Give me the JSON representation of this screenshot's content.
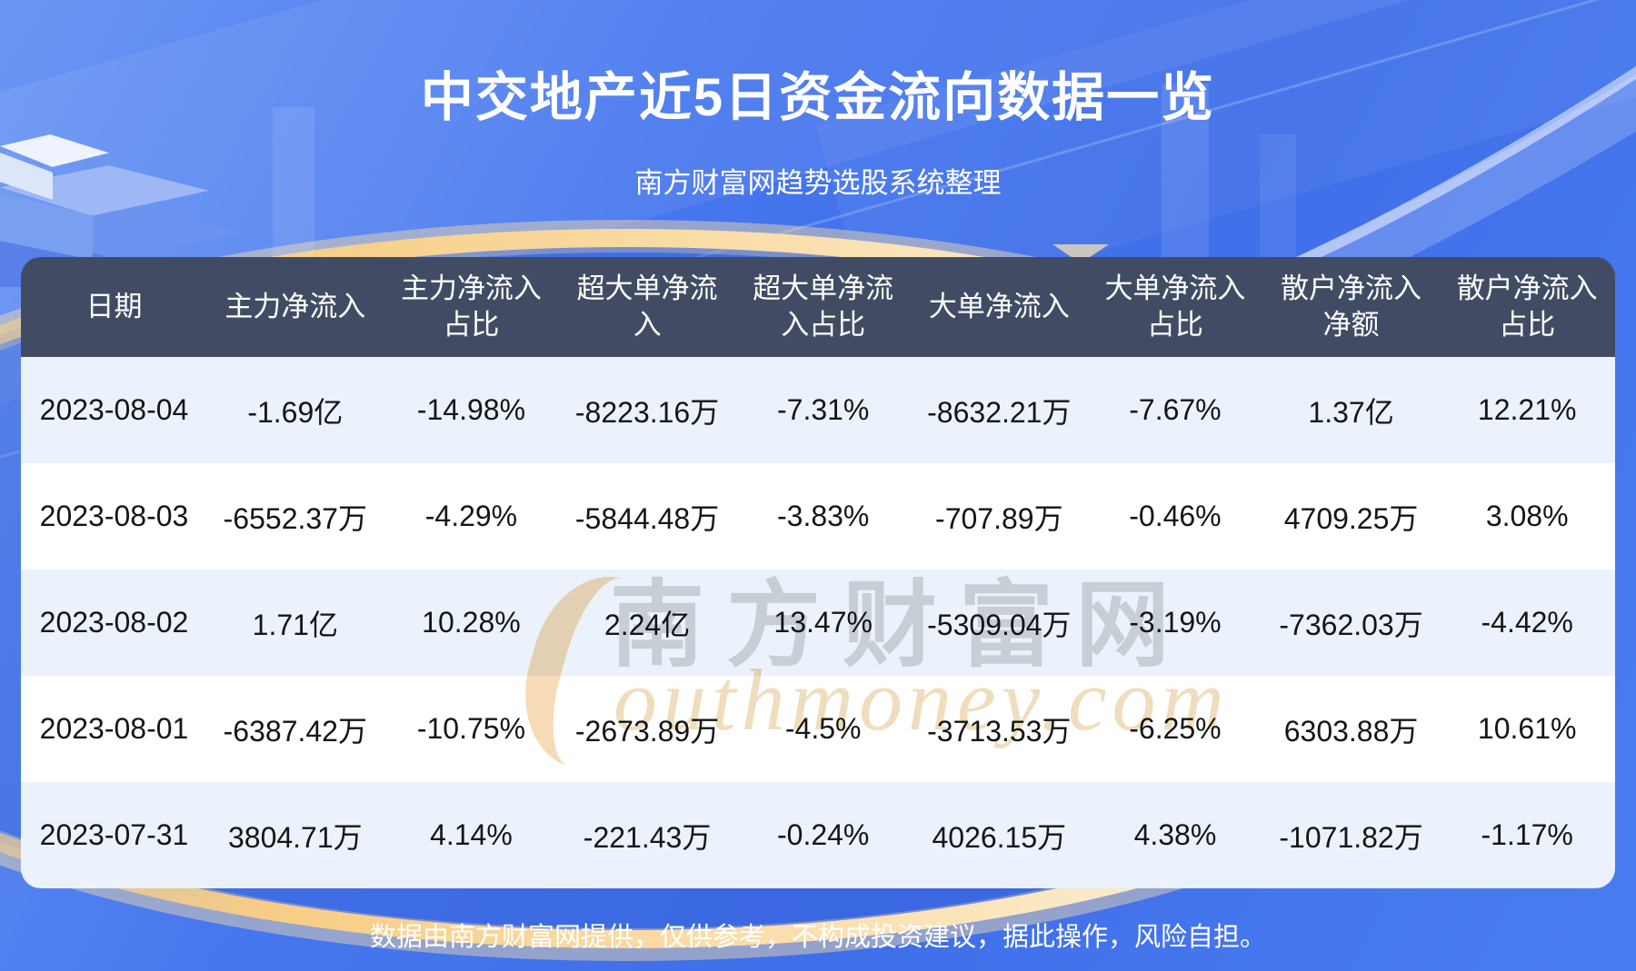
{
  "page": {
    "title": "中交地产近5日资金流向数据一览",
    "subtitle": "南方财富网趋势选股系统整理",
    "footer": "数据由南方财富网提供，仅供参考，不构成投资建议，据此操作，风险自担。"
  },
  "watermark": {
    "cn": "南方财富网",
    "en": "outhmoney.com"
  },
  "colors": {
    "bg_blue": "#4677ee",
    "bg_blue_light": "#6b97f4",
    "header_bg": "#414c64",
    "row_light": "#ebf2fb",
    "row_white": "#ffffff",
    "gold": "#f7cd85",
    "text_dark": "#151515",
    "white": "#ffffff"
  },
  "table": {
    "headers_display": [
      "日期",
      "主力净流入",
      "主力净流入\n占比",
      "超大单净流\n入",
      "超大单净流\n入占比",
      "大单净流入",
      "大单净流入\n占比",
      "散户净流入\n净额",
      "散户净流入\n占比"
    ]
  },
  "chart_data": {
    "type": "table",
    "title": "中交地产近5日资金流向数据一览",
    "columns": [
      "日期",
      "主力净流入",
      "主力净流入占比",
      "超大单净流入",
      "超大单净流入占比",
      "大单净流入",
      "大单净流入占比",
      "散户净流入净额",
      "散户净流入占比"
    ],
    "rows": [
      [
        "2023-08-04",
        "-1.69亿",
        "-14.98%",
        "-8223.16万",
        "-7.31%",
        "-8632.21万",
        "-7.67%",
        "1.37亿",
        "12.21%"
      ],
      [
        "2023-08-03",
        "-6552.37万",
        "-4.29%",
        "-5844.48万",
        "-3.83%",
        "-707.89万",
        "-0.46%",
        "4709.25万",
        "3.08%"
      ],
      [
        "2023-08-02",
        "1.71亿",
        "10.28%",
        "2.24亿",
        "13.47%",
        "-5309.04万",
        "-3.19%",
        "-7362.03万",
        "-4.42%"
      ],
      [
        "2023-08-01",
        "-6387.42万",
        "-10.75%",
        "-2673.89万",
        "-4.5%",
        "-3713.53万",
        "-6.25%",
        "6303.88万",
        "10.61%"
      ],
      [
        "2023-07-31",
        "3804.71万",
        "4.14%",
        "-221.43万",
        "-0.24%",
        "4026.15万",
        "4.38%",
        "-1071.82万",
        "-1.17%"
      ]
    ]
  }
}
